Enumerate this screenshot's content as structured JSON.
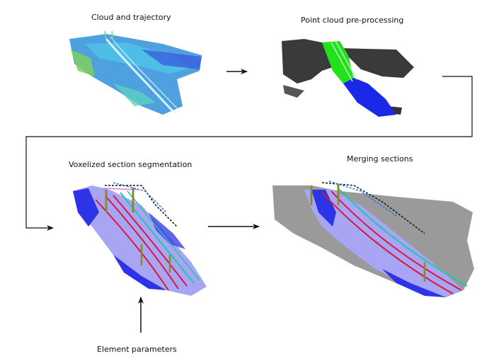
{
  "labels": {
    "cloud_trajectory": "Cloud and trajectory",
    "preprocessing": "Point cloud pre-processing",
    "voxelized": "Voxelized section segmentation",
    "merging": "Merging sections",
    "element_params": "Element parameters"
  },
  "colors": {
    "raw_cloud": "#2f8fd8",
    "raw_cloud_light": "#4fc1e8",
    "raw_cloud_green": "#7fcf5a",
    "trajectory": "#d8f0ff",
    "ground_gray": "#3a3a3a",
    "rail_green": "#22e01a",
    "rail_blue": "#1a28e8",
    "section_lavender": "#a8a6f4",
    "section_blue": "#2d33e6",
    "rail_red": "#d8183a",
    "rail_cyan": "#22c7a8",
    "mast_olive": "#8a8a2a",
    "wire_pink": "#e85ad8",
    "merge_gray": "#9a9a9a",
    "arrow": "#111111"
  }
}
